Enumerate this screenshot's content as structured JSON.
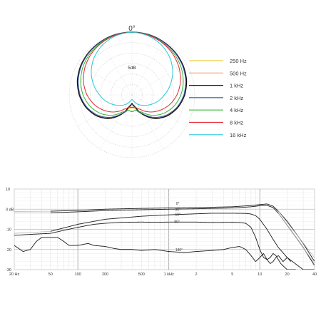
{
  "chart_data": [
    {
      "type": "polar",
      "title": "0°",
      "ring_label": "5dB",
      "grid": true,
      "legend_position": "right",
      "series": [
        {
          "name": "250 Hz",
          "color": "#f2cf3a",
          "angles_deg": [
            0,
            15,
            30,
            45,
            60,
            75,
            90,
            105,
            120,
            135,
            150,
            165,
            180
          ],
          "values_db": [
            0,
            -0.2,
            -0.6,
            -1.2,
            -2.1,
            -3.3,
            -5,
            -7.4,
            -10.5,
            -14.5,
            -19,
            -23,
            -24
          ]
        },
        {
          "name": "500 Hz",
          "color": "#f4a074",
          "angles_deg": [
            0,
            15,
            30,
            45,
            60,
            75,
            90,
            105,
            120,
            135,
            150,
            165,
            180
          ],
          "values_db": [
            0,
            -0.2,
            -0.6,
            -1.2,
            -2.1,
            -3.3,
            -5,
            -7.4,
            -10.5,
            -14.5,
            -19.5,
            -23.5,
            -25
          ]
        },
        {
          "name": "1 kHz",
          "color": "#111111",
          "angles_deg": [
            0,
            15,
            30,
            45,
            60,
            75,
            90,
            105,
            120,
            135,
            150,
            165,
            180
          ],
          "values_db": [
            0,
            -0.1,
            -0.5,
            -1,
            -1.8,
            -3,
            -4.8,
            -7.2,
            -10.2,
            -14,
            -19,
            -24,
            -26
          ]
        },
        {
          "name": "2 kHz",
          "color": "#3c5aa8",
          "angles_deg": [
            0,
            15,
            30,
            45,
            60,
            75,
            90,
            105,
            120,
            135,
            150,
            165,
            180
          ],
          "values_db": [
            0,
            -0.2,
            -0.6,
            -1.2,
            -2.1,
            -3.4,
            -5.2,
            -7.6,
            -10.8,
            -14.8,
            -19.5,
            -22.5,
            -22
          ]
        },
        {
          "name": "4 kHz",
          "color": "#33b533",
          "angles_deg": [
            0,
            15,
            30,
            45,
            60,
            75,
            90,
            105,
            120,
            135,
            150,
            165,
            180
          ],
          "values_db": [
            0,
            -0.3,
            -0.9,
            -1.8,
            -3,
            -4.6,
            -6.6,
            -9.2,
            -12.4,
            -16.2,
            -20.5,
            -22.5,
            -22
          ]
        },
        {
          "name": "8 kHz",
          "color": "#e5262e",
          "angles_deg": [
            0,
            15,
            30,
            45,
            60,
            75,
            90,
            105,
            120,
            135,
            150,
            165,
            180
          ],
          "values_db": [
            0,
            -0.4,
            -1.2,
            -2.4,
            -4,
            -6,
            -8.5,
            -11.5,
            -15,
            -18.5,
            -22,
            -24,
            -24
          ]
        },
        {
          "name": "16 kHz",
          "color": "#29c6dd",
          "angles_deg": [
            0,
            15,
            30,
            45,
            60,
            75,
            90,
            105,
            120,
            135,
            150,
            165,
            180
          ],
          "values_db": [
            0,
            -0.7,
            -2.2,
            -4.5,
            -7.5,
            -11,
            -14.5,
            -17.5,
            -20.5,
            -23,
            -25,
            -27,
            -28
          ]
        }
      ]
    },
    {
      "type": "line",
      "x_scale": "log",
      "xlim": [
        20,
        40000
      ],
      "ylim": [
        -30,
        10
      ],
      "grid": true,
      "xticks": [
        {
          "value": 20,
          "label": "20 Hz"
        },
        {
          "value": 50,
          "label": "50"
        },
        {
          "value": 100,
          "label": "100"
        },
        {
          "value": 200,
          "label": "200"
        },
        {
          "value": 500,
          "label": "500"
        },
        {
          "value": 1000,
          "label": "1 kHz"
        },
        {
          "value": 2000,
          "label": "2"
        },
        {
          "value": 5000,
          "label": "5"
        },
        {
          "value": 10000,
          "label": "10"
        },
        {
          "value": 20000,
          "label": "20"
        },
        {
          "value": 40000,
          "label": "40"
        }
      ],
      "yticks": [
        {
          "value": 10,
          "label": "10"
        },
        {
          "value": 0,
          "label": "0 dB"
        },
        {
          "value": -10,
          "label": "-10"
        },
        {
          "value": -20,
          "label": "-20"
        },
        {
          "value": -30,
          "label": "-30"
        }
      ],
      "series": [
        {
          "name": "0°",
          "x": [
            50,
            100,
            200,
            500,
            1000,
            2000,
            5000,
            8000,
            10000,
            12000,
            14000,
            16000,
            20000,
            30000,
            40000
          ],
          "y": [
            -1,
            -0.6,
            0,
            0.4,
            0.6,
            0.8,
            1.2,
            1.8,
            2.3,
            2.6,
            1.5,
            -1,
            -6,
            -17,
            -26
          ]
        },
        {
          "name": "30°",
          "x": [
            50,
            100,
            200,
            500,
            1000,
            2000,
            5000,
            8000,
            10000,
            12000,
            14000,
            16000,
            20000,
            30000,
            40000
          ],
          "y": [
            -1.8,
            -1.3,
            -0.7,
            -0.3,
            0,
            0.2,
            0.6,
            1.2,
            1.7,
            1.9,
            0.8,
            -2,
            -8,
            -19,
            -28
          ]
        },
        {
          "name": "60°",
          "x": [
            50,
            100,
            200,
            500,
            1000,
            2000,
            3000,
            5000,
            7000,
            8000,
            9000,
            10000,
            12000,
            14000,
            16000,
            20000,
            30000,
            40000
          ],
          "y": [
            -11,
            -7.5,
            -5,
            -3.5,
            -2.8,
            -2.3,
            -2,
            -2,
            -2.1,
            -2.4,
            -3.2,
            -5,
            -10,
            -15,
            -19,
            -24,
            -30,
            -30
          ]
        },
        {
          "name": "90°",
          "x": [
            20,
            30,
            50,
            70,
            100,
            150,
            200,
            300,
            500,
            700,
            1000,
            2000,
            3000,
            5000,
            6000,
            7000,
            8000,
            9000,
            10000,
            11000,
            12000,
            13000,
            14000,
            15000,
            17000,
            20000,
            25000
          ],
          "y": [
            -13,
            -12.5,
            -12,
            -10.5,
            -9,
            -7.5,
            -7,
            -6.5,
            -6.4,
            -6.5,
            -6.4,
            -6.4,
            -6.6,
            -6.5,
            -6.6,
            -7,
            -9,
            -14,
            -20,
            -24,
            -25,
            -24,
            -22,
            -23,
            -27,
            -30,
            -30
          ]
        },
        {
          "name": "180°",
          "x": [
            20,
            25,
            30,
            35,
            40,
            50,
            60,
            70,
            80,
            100,
            130,
            150,
            200,
            250,
            300,
            400,
            500,
            700,
            1000,
            1500,
            2000,
            3000,
            4000,
            5000,
            6000,
            7000,
            8000,
            9000,
            10000,
            11000,
            12000,
            13000,
            14000,
            15000,
            16000,
            18000,
            20000,
            22000
          ],
          "y": [
            -18,
            -21,
            -20,
            -16,
            -14,
            -14,
            -14,
            -16,
            -18,
            -18,
            -17,
            -18,
            -18.5,
            -19.5,
            -20,
            -20,
            -20.5,
            -20,
            -21,
            -21.5,
            -21,
            -20.5,
            -20,
            -19,
            -18.5,
            -20,
            -23,
            -26,
            -24,
            -22,
            -25,
            -27,
            -26,
            -24,
            -23,
            -26,
            -24,
            -26
          ]
        }
      ],
      "annotations": [
        {
          "text": "0°",
          "x": 1200,
          "y": 2.2
        },
        {
          "text": "30°",
          "x": 1170,
          "y": -0.8
        },
        {
          "text": "60°",
          "x": 1170,
          "y": -3.2
        },
        {
          "text": "90°",
          "x": 1150,
          "y": -6.9
        },
        {
          "text": "180°",
          "x": 1180,
          "y": -20.8
        }
      ]
    }
  ]
}
